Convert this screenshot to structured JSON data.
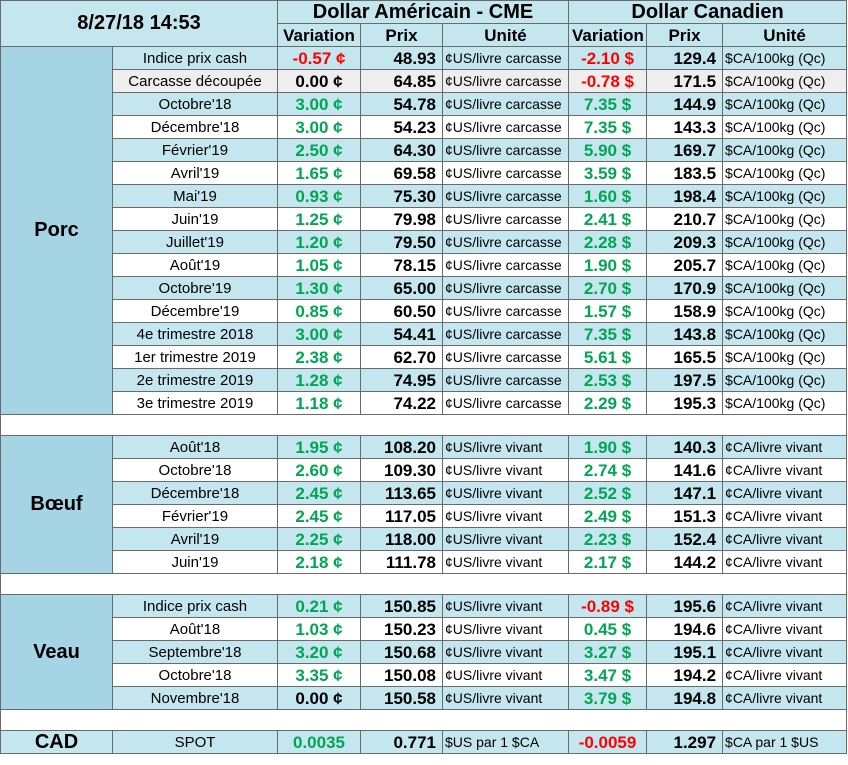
{
  "header": {
    "timestamp": "8/27/18 14:53",
    "usd_title": "Dollar Américain - CME",
    "cad_title": "Dollar Canadien",
    "col_variation": "Variation",
    "col_prix": "Prix",
    "col_unite": "Unité"
  },
  "sections": [
    {
      "name": "Porc",
      "rows": [
        {
          "label": "Indice prix cash",
          "usd_var": "-0.57 ¢",
          "usd_sign": "neg",
          "usd_prix": "48.93",
          "usd_unit": "¢US/livre carcasse",
          "cad_var": "-2.10 $",
          "cad_sign": "neg",
          "cad_prix": "129.4",
          "cad_unit": "$CA/100kg (Qc)"
        },
        {
          "label": "Carcasse découpée",
          "usd_var": "0.00 ¢",
          "usd_sign": "zero",
          "usd_prix": "64.85",
          "usd_unit": "¢US/livre carcasse",
          "cad_var": "-0.78 $",
          "cad_sign": "neg",
          "cad_prix": "171.5",
          "cad_unit": "$CA/100kg (Qc)"
        },
        {
          "label": "Octobre'18",
          "usd_var": "3.00 ¢",
          "usd_sign": "pos",
          "usd_prix": "54.78",
          "usd_unit": "¢US/livre carcasse",
          "cad_var": "7.35 $",
          "cad_sign": "pos",
          "cad_prix": "144.9",
          "cad_unit": "$CA/100kg (Qc)"
        },
        {
          "label": "Décembre'18",
          "usd_var": "3.00 ¢",
          "usd_sign": "pos",
          "usd_prix": "54.23",
          "usd_unit": "¢US/livre carcasse",
          "cad_var": "7.35 $",
          "cad_sign": "pos",
          "cad_prix": "143.3",
          "cad_unit": "$CA/100kg (Qc)"
        },
        {
          "label": "Février'19",
          "usd_var": "2.50 ¢",
          "usd_sign": "pos",
          "usd_prix": "64.30",
          "usd_unit": "¢US/livre carcasse",
          "cad_var": "5.90 $",
          "cad_sign": "pos",
          "cad_prix": "169.7",
          "cad_unit": "$CA/100kg (Qc)"
        },
        {
          "label": "Avril'19",
          "usd_var": "1.65 ¢",
          "usd_sign": "pos",
          "usd_prix": "69.58",
          "usd_unit": "¢US/livre carcasse",
          "cad_var": "3.59 $",
          "cad_sign": "pos",
          "cad_prix": "183.5",
          "cad_unit": "$CA/100kg (Qc)"
        },
        {
          "label": "Mai'19",
          "usd_var": "0.93 ¢",
          "usd_sign": "pos",
          "usd_prix": "75.30",
          "usd_unit": "¢US/livre carcasse",
          "cad_var": "1.60 $",
          "cad_sign": "pos",
          "cad_prix": "198.4",
          "cad_unit": "$CA/100kg (Qc)"
        },
        {
          "label": "Juin'19",
          "usd_var": "1.25 ¢",
          "usd_sign": "pos",
          "usd_prix": "79.98",
          "usd_unit": "¢US/livre carcasse",
          "cad_var": "2.41 $",
          "cad_sign": "pos",
          "cad_prix": "210.7",
          "cad_unit": "$CA/100kg (Qc)"
        },
        {
          "label": "Juillet'19",
          "usd_var": "1.20 ¢",
          "usd_sign": "pos",
          "usd_prix": "79.50",
          "usd_unit": "¢US/livre carcasse",
          "cad_var": "2.28 $",
          "cad_sign": "pos",
          "cad_prix": "209.3",
          "cad_unit": "$CA/100kg (Qc)"
        },
        {
          "label": "Août'19",
          "usd_var": "1.05 ¢",
          "usd_sign": "pos",
          "usd_prix": "78.15",
          "usd_unit": "¢US/livre carcasse",
          "cad_var": "1.90 $",
          "cad_sign": "pos",
          "cad_prix": "205.7",
          "cad_unit": "$CA/100kg (Qc)"
        },
        {
          "label": "Octobre'19",
          "usd_var": "1.30 ¢",
          "usd_sign": "pos",
          "usd_prix": "65.00",
          "usd_unit": "¢US/livre carcasse",
          "cad_var": "2.70 $",
          "cad_sign": "pos",
          "cad_prix": "170.9",
          "cad_unit": "$CA/100kg (Qc)"
        },
        {
          "label": "Décembre'19",
          "usd_var": "0.85 ¢",
          "usd_sign": "pos",
          "usd_prix": "60.50",
          "usd_unit": "¢US/livre carcasse",
          "cad_var": "1.57 $",
          "cad_sign": "pos",
          "cad_prix": "158.9",
          "cad_unit": "$CA/100kg (Qc)"
        },
        {
          "label": "4e trimestre 2018",
          "usd_var": "3.00 ¢",
          "usd_sign": "pos",
          "usd_prix": "54.41",
          "usd_unit": "¢US/livre carcasse",
          "cad_var": "7.35 $",
          "cad_sign": "pos",
          "cad_prix": "143.8",
          "cad_unit": "$CA/100kg (Qc)"
        },
        {
          "label": "1er trimestre 2019",
          "usd_var": "2.38 ¢",
          "usd_sign": "pos",
          "usd_prix": "62.70",
          "usd_unit": "¢US/livre carcasse",
          "cad_var": "5.61 $",
          "cad_sign": "pos",
          "cad_prix": "165.5",
          "cad_unit": "$CA/100kg (Qc)"
        },
        {
          "label": "2e trimestre 2019",
          "usd_var": "1.28 ¢",
          "usd_sign": "pos",
          "usd_prix": "74.95",
          "usd_unit": "¢US/livre carcasse",
          "cad_var": "2.53 $",
          "cad_sign": "pos",
          "cad_prix": "197.5",
          "cad_unit": "$CA/100kg (Qc)"
        },
        {
          "label": "3e trimestre 2019",
          "usd_var": "1.18 ¢",
          "usd_sign": "pos",
          "usd_prix": "74.22",
          "usd_unit": "¢US/livre carcasse",
          "cad_var": "2.29 $",
          "cad_sign": "pos",
          "cad_prix": "195.3",
          "cad_unit": "$CA/100kg (Qc)"
        }
      ]
    },
    {
      "name": "Bœuf",
      "rows": [
        {
          "label": "Août'18",
          "usd_var": "1.95 ¢",
          "usd_sign": "pos",
          "usd_prix": "108.20",
          "usd_unit": "¢US/livre vivant",
          "cad_var": "1.90 $",
          "cad_sign": "pos",
          "cad_prix": "140.3",
          "cad_unit": "¢CA/livre vivant"
        },
        {
          "label": "Octobre'18",
          "usd_var": "2.60 ¢",
          "usd_sign": "pos",
          "usd_prix": "109.30",
          "usd_unit": "¢US/livre vivant",
          "cad_var": "2.74 $",
          "cad_sign": "pos",
          "cad_prix": "141.6",
          "cad_unit": "¢CA/livre vivant"
        },
        {
          "label": "Décembre'18",
          "usd_var": "2.45 ¢",
          "usd_sign": "pos",
          "usd_prix": "113.65",
          "usd_unit": "¢US/livre vivant",
          "cad_var": "2.52 $",
          "cad_sign": "pos",
          "cad_prix": "147.1",
          "cad_unit": "¢CA/livre vivant"
        },
        {
          "label": "Février'19",
          "usd_var": "2.45 ¢",
          "usd_sign": "pos",
          "usd_prix": "117.05",
          "usd_unit": "¢US/livre vivant",
          "cad_var": "2.49 $",
          "cad_sign": "pos",
          "cad_prix": "151.3",
          "cad_unit": "¢CA/livre vivant"
        },
        {
          "label": "Avril'19",
          "usd_var": "2.25 ¢",
          "usd_sign": "pos",
          "usd_prix": "118.00",
          "usd_unit": "¢US/livre vivant",
          "cad_var": "2.23 $",
          "cad_sign": "pos",
          "cad_prix": "152.4",
          "cad_unit": "¢CA/livre vivant"
        },
        {
          "label": "Juin'19",
          "usd_var": "2.18 ¢",
          "usd_sign": "pos",
          "usd_prix": "111.78",
          "usd_unit": "¢US/livre vivant",
          "cad_var": "2.17 $",
          "cad_sign": "pos",
          "cad_prix": "144.2",
          "cad_unit": "¢CA/livre vivant"
        }
      ]
    },
    {
      "name": "Veau",
      "rows": [
        {
          "label": "Indice prix cash",
          "usd_var": "0.21 ¢",
          "usd_sign": "pos",
          "usd_prix": "150.85",
          "usd_unit": "¢US/livre vivant",
          "cad_var": "-0.89 $",
          "cad_sign": "neg",
          "cad_prix": "195.6",
          "cad_unit": "¢CA/livre vivant"
        },
        {
          "label": "Août'18",
          "usd_var": "1.03 ¢",
          "usd_sign": "pos",
          "usd_prix": "150.23",
          "usd_unit": "¢US/livre vivant",
          "cad_var": "0.45 $",
          "cad_sign": "pos",
          "cad_prix": "194.6",
          "cad_unit": "¢CA/livre vivant"
        },
        {
          "label": "Septembre'18",
          "usd_var": "3.20 ¢",
          "usd_sign": "pos",
          "usd_prix": "150.68",
          "usd_unit": "¢US/livre vivant",
          "cad_var": "3.27 $",
          "cad_sign": "pos",
          "cad_prix": "195.1",
          "cad_unit": "¢CA/livre vivant"
        },
        {
          "label": "Octobre'18",
          "usd_var": "3.35 ¢",
          "usd_sign": "pos",
          "usd_prix": "150.08",
          "usd_unit": "¢US/livre vivant",
          "cad_var": "3.47 $",
          "cad_sign": "pos",
          "cad_prix": "194.2",
          "cad_unit": "¢CA/livre vivant"
        },
        {
          "label": "Novembre'18",
          "usd_var": "0.00 ¢",
          "usd_sign": "zero",
          "usd_prix": "150.58",
          "usd_unit": "¢US/livre vivant",
          "cad_var": "3.79 $",
          "cad_sign": "pos",
          "cad_prix": "194.8",
          "cad_unit": "¢CA/livre vivant"
        }
      ]
    }
  ],
  "cad": {
    "name": "CAD",
    "label": "SPOT",
    "usd_var": "0.0035",
    "usd_sign": "pos",
    "usd_prix": "0.771",
    "usd_unit": "$US par 1 $CA",
    "cad_var": "-0.0059",
    "cad_sign": "neg",
    "cad_prix": "1.297",
    "cad_unit": "$CA par 1 $US"
  },
  "colors": {
    "positive": "#00a651",
    "negative": "#ff0000",
    "band_light": "#c3e6ef",
    "category_bg": "#a5d4e4"
  }
}
